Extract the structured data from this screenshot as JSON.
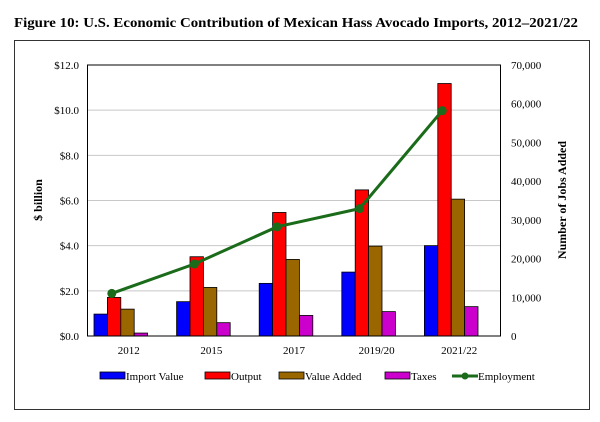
{
  "chart_data": {
    "type": "bar",
    "title": "Figure 10: U.S. Economic Contribution of Mexican Hass Avocado Imports, 2012–2021/22",
    "categories": [
      "2012",
      "2015",
      "2017",
      "2019/20",
      "2021/22"
    ],
    "ylabel": "$ billion",
    "y2label": "Number of Jobs Added",
    "ylim": [
      0,
      12
    ],
    "y2lim": [
      0,
      70000
    ],
    "yticks": [
      "$0.0",
      "$2.0",
      "$4.0",
      "$6.0",
      "$8.0",
      "$10.0",
      "$12.0"
    ],
    "y2ticks": [
      "0",
      "10,000",
      "20,000",
      "30,000",
      "40,000",
      "50,000",
      "60,000",
      "70,000"
    ],
    "grid": true,
    "legend_position": "bottom",
    "series": [
      {
        "name": "Import Value",
        "type": "bar",
        "axis": "left",
        "color": "#0000ff",
        "values": [
          0.97,
          1.52,
          2.33,
          2.83,
          4.0
        ]
      },
      {
        "name": "Output",
        "type": "bar",
        "axis": "left",
        "color": "#ff0000",
        "values": [
          1.71,
          3.51,
          5.47,
          6.47,
          11.18
        ]
      },
      {
        "name": "Value Added",
        "type": "bar",
        "axis": "left",
        "color": "#996600",
        "values": [
          1.19,
          2.15,
          3.39,
          3.98,
          6.06
        ]
      },
      {
        "name": "Taxes",
        "type": "bar",
        "axis": "left",
        "color": "#cc00cc",
        "values": [
          0.13,
          0.59,
          0.91,
          1.08,
          1.3
        ]
      },
      {
        "name": "Employment",
        "type": "line",
        "axis": "right",
        "color": "#1a6b1a",
        "values": [
          11000,
          18600,
          28200,
          32900,
          58200
        ]
      }
    ]
  }
}
